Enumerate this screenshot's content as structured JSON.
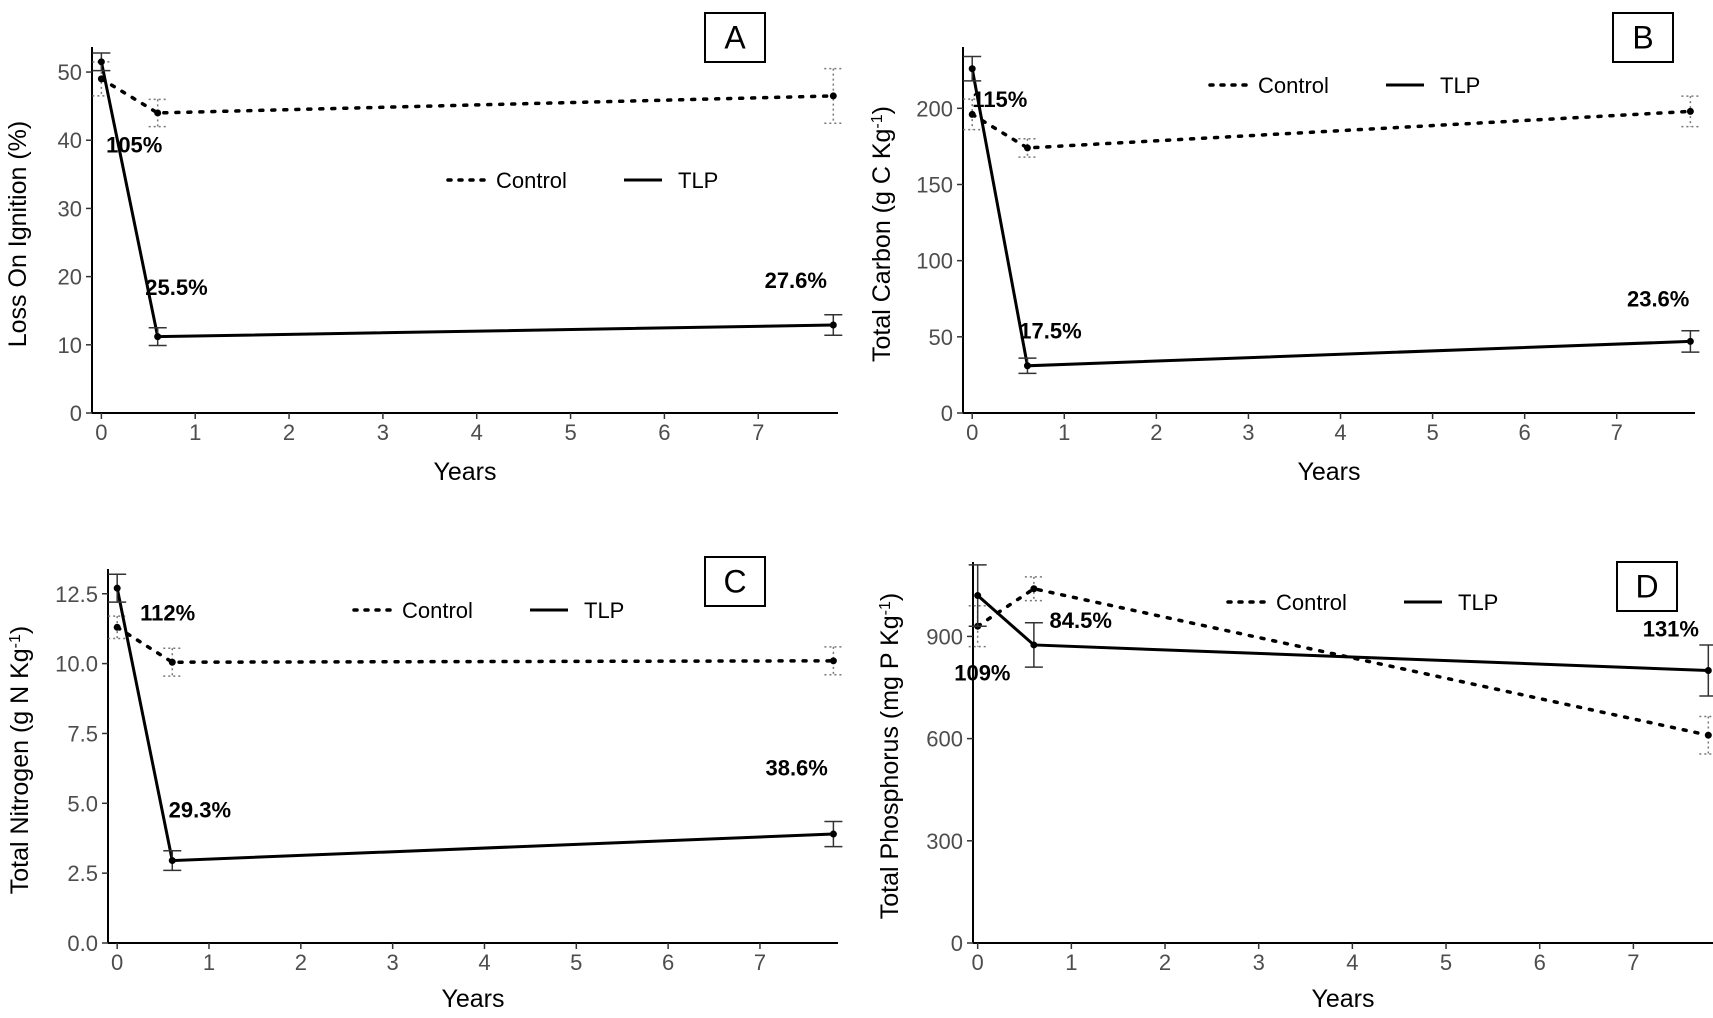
{
  "chart_data": [
    {
      "panel": "A",
      "type": "line",
      "xlabel": "Years",
      "ylabel": "Loss On Ignition (%)",
      "ylabel_sup": "",
      "ylabel_after": "",
      "xlim": [
        -0.1,
        7.85
      ],
      "ylim": [
        0,
        52.5
      ],
      "xticks": [
        0,
        1,
        2,
        3,
        4,
        5,
        6,
        7
      ],
      "yticks": [
        0,
        10,
        20,
        30,
        40,
        50
      ],
      "ytick_labels": [
        "0",
        "10",
        "20",
        "30",
        "40",
        "50"
      ],
      "legend": [
        "Control",
        "TLP"
      ],
      "series": [
        {
          "name": "Control",
          "style": "dotted",
          "x": [
            0,
            0.6,
            7.8
          ],
          "y": [
            49,
            44,
            46.5
          ],
          "err": [
            2.5,
            2,
            4
          ]
        },
        {
          "name": "TLP",
          "style": "solid",
          "x": [
            0,
            0.6,
            7.8
          ],
          "y": [
            51.5,
            11.2,
            12.9
          ],
          "err": [
            1.3,
            1.3,
            1.5
          ]
        }
      ],
      "annotations": [
        {
          "text": "105%",
          "x": 0.35,
          "y": 38.2
        },
        {
          "text": "25.5%",
          "x": 0.8,
          "y": 17.3
        },
        {
          "text": "27.6%",
          "x": 7.4,
          "y": 18.3
        }
      ]
    },
    {
      "panel": "B",
      "type": "line",
      "xlabel": "Years",
      "ylabel": "Total Carbon (g C Kg",
      "ylabel_sup": "-1",
      "ylabel_after": ")",
      "xlim": [
        -0.1,
        7.85
      ],
      "ylim": [
        0,
        235
      ],
      "xticks": [
        0,
        1,
        2,
        3,
        4,
        5,
        6,
        7
      ],
      "yticks": [
        0,
        50,
        100,
        150,
        200
      ],
      "ytick_labels": [
        "0",
        "50",
        "100",
        "150",
        "200"
      ],
      "legend": [
        "Control",
        "TLP"
      ],
      "series": [
        {
          "name": "Control",
          "style": "dotted",
          "x": [
            0,
            0.6,
            7.8
          ],
          "y": [
            196,
            174,
            198
          ],
          "err": [
            10,
            6,
            10
          ]
        },
        {
          "name": "TLP",
          "style": "solid",
          "x": [
            0,
            0.6,
            7.8
          ],
          "y": [
            226,
            31,
            47
          ],
          "err": [
            8,
            5,
            7
          ]
        }
      ],
      "annotations": [
        {
          "text": "115%",
          "x": 0.3,
          "y": 201
        },
        {
          "text": "17.5%",
          "x": 0.85,
          "y": 49
        },
        {
          "text": "23.6%",
          "x": 7.45,
          "y": 70
        }
      ]
    },
    {
      "panel": "C",
      "type": "line",
      "xlabel": "Years",
      "ylabel": "Total Nitrogen (g N Kg",
      "ylabel_sup": "-1",
      "ylabel_after": ")",
      "xlim": [
        -0.1,
        7.85
      ],
      "ylim": [
        0,
        13.1
      ],
      "xticks": [
        0,
        1,
        2,
        3,
        4,
        5,
        6,
        7
      ],
      "yticks": [
        0,
        2.5,
        5,
        7.5,
        10,
        12.5
      ],
      "ytick_labels": [
        "0.0",
        "2.5",
        "5.0",
        "7.5",
        "10.0",
        "12.5"
      ],
      "legend": [
        "Control",
        "TLP"
      ],
      "series": [
        {
          "name": "Control",
          "style": "dotted",
          "x": [
            0,
            0.6,
            7.8
          ],
          "y": [
            11.3,
            10.05,
            10.1
          ],
          "err": [
            0.4,
            0.5,
            0.5
          ]
        },
        {
          "name": "TLP",
          "style": "solid",
          "x": [
            0,
            0.6,
            7.8
          ],
          "y": [
            12.7,
            2.95,
            3.9
          ],
          "err": [
            0.5,
            0.35,
            0.45
          ]
        }
      ],
      "annotations": [
        {
          "text": "112%",
          "x": 0.55,
          "y": 11.55
        },
        {
          "text": "29.3%",
          "x": 0.9,
          "y": 4.5
        },
        {
          "text": "38.6%",
          "x": 7.4,
          "y": 6.0
        }
      ]
    },
    {
      "panel": "D",
      "type": "line",
      "xlabel": "Years",
      "ylabel": "Total Phosphorus (mg P Kg",
      "ylabel_sup": "-1",
      "ylabel_after": ")",
      "xlim": [
        -0.05,
        7.85
      ],
      "ylim": [
        0,
        1095
      ],
      "xticks": [
        0,
        1,
        2,
        3,
        4,
        5,
        6,
        7
      ],
      "yticks": [
        0,
        300,
        600,
        900
      ],
      "ytick_labels": [
        "0",
        "300",
        "600",
        "900"
      ],
      "legend": [
        "Control",
        "TLP"
      ],
      "series": [
        {
          "name": "Control",
          "style": "dotted",
          "x": [
            0,
            0.6,
            7.8
          ],
          "y": [
            930,
            1040,
            610
          ],
          "err": [
            60,
            35,
            55
          ]
        },
        {
          "name": "TLP",
          "style": "solid",
          "x": [
            0,
            0.6,
            7.8
          ],
          "y": [
            1020,
            875,
            800
          ],
          "err": [
            90,
            65,
            75
          ]
        }
      ],
      "annotations": [
        {
          "text": "84.5%",
          "x": 1.1,
          "y": 925
        },
        {
          "text": "109%",
          "x": 0.05,
          "y": 770
        },
        {
          "text": "131%",
          "x": 7.4,
          "y": 900
        }
      ]
    }
  ]
}
